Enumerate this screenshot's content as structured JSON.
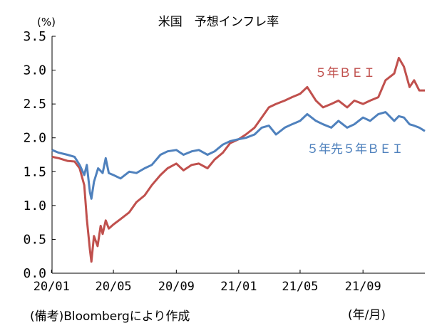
{
  "chart_data": {
    "type": "line",
    "title": "米国　予想インフレ率",
    "ylabel": "(%)",
    "xlabel": "(年/月)",
    "note": "(備考)Bloombergにより作成",
    "ylim": [
      0.0,
      3.5
    ],
    "yticks": [
      "0.0",
      "0.5",
      "1.0",
      "1.5",
      "2.0",
      "2.5",
      "3.0",
      "3.5"
    ],
    "xticks": [
      "20/01",
      "20/05",
      "20/09",
      "21/01",
      "21/05",
      "21/09"
    ],
    "xrange": [
      "2020-01-02",
      "2021-12-31"
    ],
    "grid": false,
    "series": [
      {
        "name": "５年ＢＥＩ",
        "color": "#c0504d",
        "points": [
          [
            "2020-01-02",
            1.72
          ],
          [
            "2020-01-15",
            1.7
          ],
          [
            "2020-02-01",
            1.66
          ],
          [
            "2020-02-15",
            1.65
          ],
          [
            "2020-02-25",
            1.55
          ],
          [
            "2020-03-05",
            1.3
          ],
          [
            "2020-03-10",
            0.8
          ],
          [
            "2020-03-16",
            0.35
          ],
          [
            "2020-03-19",
            0.17
          ],
          [
            "2020-03-24",
            0.55
          ],
          [
            "2020-03-31",
            0.4
          ],
          [
            "2020-04-06",
            0.7
          ],
          [
            "2020-04-10",
            0.58
          ],
          [
            "2020-04-16",
            0.78
          ],
          [
            "2020-04-22",
            0.66
          ],
          [
            "2020-05-01",
            0.72
          ],
          [
            "2020-05-15",
            0.8
          ],
          [
            "2020-06-01",
            0.9
          ],
          [
            "2020-06-15",
            1.05
          ],
          [
            "2020-07-01",
            1.15
          ],
          [
            "2020-07-15",
            1.3
          ],
          [
            "2020-08-01",
            1.45
          ],
          [
            "2020-08-15",
            1.55
          ],
          [
            "2020-09-01",
            1.62
          ],
          [
            "2020-09-15",
            1.52
          ],
          [
            "2020-10-01",
            1.6
          ],
          [
            "2020-10-15",
            1.62
          ],
          [
            "2020-11-01",
            1.55
          ],
          [
            "2020-11-15",
            1.68
          ],
          [
            "2020-12-01",
            1.78
          ],
          [
            "2020-12-15",
            1.92
          ],
          [
            "2021-01-01",
            1.98
          ],
          [
            "2021-01-15",
            2.05
          ],
          [
            "2021-02-01",
            2.15
          ],
          [
            "2021-02-15",
            2.3
          ],
          [
            "2021-03-01",
            2.45
          ],
          [
            "2021-03-15",
            2.5
          ],
          [
            "2021-04-01",
            2.55
          ],
          [
            "2021-04-15",
            2.6
          ],
          [
            "2021-05-01",
            2.65
          ],
          [
            "2021-05-15",
            2.75
          ],
          [
            "2021-06-01",
            2.55
          ],
          [
            "2021-06-15",
            2.45
          ],
          [
            "2021-07-01",
            2.5
          ],
          [
            "2021-07-15",
            2.55
          ],
          [
            "2021-08-01",
            2.45
          ],
          [
            "2021-08-15",
            2.55
          ],
          [
            "2021-09-01",
            2.5
          ],
          [
            "2021-09-15",
            2.55
          ],
          [
            "2021-10-01",
            2.6
          ],
          [
            "2021-10-15",
            2.85
          ],
          [
            "2021-11-01",
            2.95
          ],
          [
            "2021-11-10",
            3.18
          ],
          [
            "2021-11-20",
            3.05
          ],
          [
            "2021-12-01",
            2.75
          ],
          [
            "2021-12-10",
            2.85
          ],
          [
            "2021-12-20",
            2.7
          ],
          [
            "2021-12-31",
            2.7
          ]
        ]
      },
      {
        "name": "５年先５年ＢＥＩ",
        "color": "#4f81bd",
        "points": [
          [
            "2020-01-02",
            1.82
          ],
          [
            "2020-01-15",
            1.78
          ],
          [
            "2020-02-01",
            1.75
          ],
          [
            "2020-02-15",
            1.72
          ],
          [
            "2020-02-25",
            1.6
          ],
          [
            "2020-03-05",
            1.45
          ],
          [
            "2020-03-10",
            1.6
          ],
          [
            "2020-03-16",
            1.2
          ],
          [
            "2020-03-19",
            1.1
          ],
          [
            "2020-03-24",
            1.35
          ],
          [
            "2020-04-01",
            1.55
          ],
          [
            "2020-04-10",
            1.48
          ],
          [
            "2020-04-16",
            1.7
          ],
          [
            "2020-04-22",
            1.48
          ],
          [
            "2020-05-01",
            1.45
          ],
          [
            "2020-05-15",
            1.4
          ],
          [
            "2020-06-01",
            1.5
          ],
          [
            "2020-06-15",
            1.48
          ],
          [
            "2020-07-01",
            1.55
          ],
          [
            "2020-07-15",
            1.6
          ],
          [
            "2020-08-01",
            1.75
          ],
          [
            "2020-08-15",
            1.8
          ],
          [
            "2020-09-01",
            1.82
          ],
          [
            "2020-09-15",
            1.75
          ],
          [
            "2020-10-01",
            1.8
          ],
          [
            "2020-10-15",
            1.82
          ],
          [
            "2020-11-01",
            1.75
          ],
          [
            "2020-11-15",
            1.8
          ],
          [
            "2020-12-01",
            1.9
          ],
          [
            "2020-12-15",
            1.95
          ],
          [
            "2021-01-01",
            1.98
          ],
          [
            "2021-01-15",
            2.0
          ],
          [
            "2021-02-01",
            2.05
          ],
          [
            "2021-02-15",
            2.15
          ],
          [
            "2021-03-01",
            2.18
          ],
          [
            "2021-03-15",
            2.05
          ],
          [
            "2021-04-01",
            2.15
          ],
          [
            "2021-04-15",
            2.2
          ],
          [
            "2021-05-01",
            2.25
          ],
          [
            "2021-05-15",
            2.35
          ],
          [
            "2021-06-01",
            2.25
          ],
          [
            "2021-06-15",
            2.2
          ],
          [
            "2021-07-01",
            2.15
          ],
          [
            "2021-07-15",
            2.25
          ],
          [
            "2021-08-01",
            2.15
          ],
          [
            "2021-08-15",
            2.2
          ],
          [
            "2021-09-01",
            2.3
          ],
          [
            "2021-09-15",
            2.25
          ],
          [
            "2021-10-01",
            2.35
          ],
          [
            "2021-10-15",
            2.38
          ],
          [
            "2021-11-01",
            2.25
          ],
          [
            "2021-11-10",
            2.32
          ],
          [
            "2021-11-20",
            2.3
          ],
          [
            "2021-12-01",
            2.2
          ],
          [
            "2021-12-10",
            2.18
          ],
          [
            "2021-12-20",
            2.15
          ],
          [
            "2021-12-31",
            2.1
          ]
        ]
      }
    ]
  }
}
